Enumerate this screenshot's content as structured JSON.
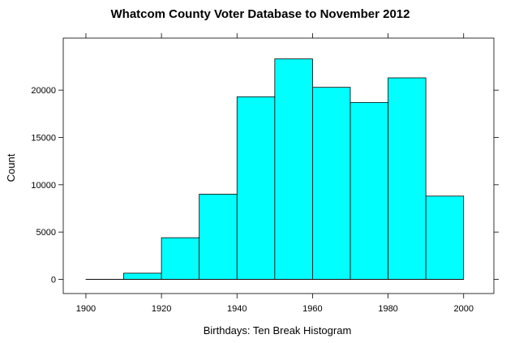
{
  "colors": {
    "bar_fill": "#00FFFF",
    "bar_stroke": "#000000",
    "frame": "#000000",
    "background": "#FFFFFF"
  },
  "chart_data": {
    "type": "bar",
    "title": "Whatcom County Voter Database to November 2012",
    "xlabel": "Birthdays: Ten Break Histogram",
    "ylabel": "Count",
    "bins": [
      {
        "start": 1900,
        "end": 1910,
        "count": 0
      },
      {
        "start": 1910,
        "end": 1920,
        "count": 650
      },
      {
        "start": 1920,
        "end": 1930,
        "count": 4400
      },
      {
        "start": 1930,
        "end": 1940,
        "count": 9000
      },
      {
        "start": 1940,
        "end": 1950,
        "count": 19300
      },
      {
        "start": 1950,
        "end": 1960,
        "count": 23300
      },
      {
        "start": 1960,
        "end": 1970,
        "count": 20300
      },
      {
        "start": 1970,
        "end": 1980,
        "count": 18700
      },
      {
        "start": 1980,
        "end": 1990,
        "count": 21300
      },
      {
        "start": 1990,
        "end": 2000,
        "count": 8800
      }
    ],
    "xlim": [
      1894,
      2008
    ],
    "ylim": [
      -1500,
      25500
    ],
    "x_ticks": [
      "1900",
      "1920",
      "1940",
      "1960",
      "1980",
      "2000"
    ],
    "y_ticks": [
      "0",
      "5000",
      "10000",
      "15000",
      "20000"
    ],
    "grid": false,
    "legend": "none"
  }
}
